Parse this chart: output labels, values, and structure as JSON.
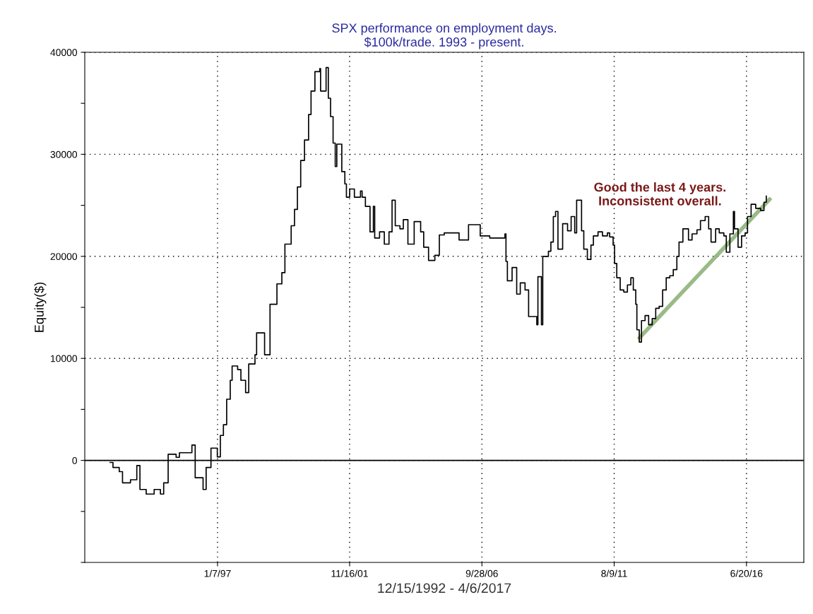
{
  "chart_data": {
    "type": "step",
    "title": "SPX performance on employment days.\n$100k/trade. 1993 - present.",
    "xlabel": "12/15/1992 - 4/6/2017",
    "ylabel": "Equity($)",
    "xlim": [
      "1992-02-20",
      "2018-07-30"
    ],
    "xticks": [
      {
        "value": "1997-01-07",
        "label": "1/7/97"
      },
      {
        "value": "2001-11-16",
        "label": "11/16/01"
      },
      {
        "value": "2006-09-28",
        "label": "9/28/06"
      },
      {
        "value": "2011-08-09",
        "label": "8/9/11"
      },
      {
        "value": "2016-06-20",
        "label": "6/20/16"
      }
    ],
    "ylim": [
      -10000,
      40000
    ],
    "yticks": [
      {
        "value": -10000,
        "label": null
      },
      {
        "value": -5000,
        "label": null
      },
      0,
      {
        "value": 5000,
        "label": null
      },
      10000,
      {
        "value": 15000,
        "label": null
      },
      20000,
      {
        "value": 25000,
        "label": null
      },
      30000,
      {
        "value": 35000,
        "label": null
      },
      40000
    ],
    "grid": true,
    "line_style": "solid",
    "marker": "none",
    "ref_lines": [
      {
        "axis": "y",
        "value": 0,
        "color": "#000000",
        "line_style": "solid"
      }
    ],
    "annotations": [
      "Good the last 4 years.\nInconsistent overall."
    ],
    "series": [
      {
        "color": "#000000",
        "x": [
          "1993-01-26",
          "1993-03-05",
          "1993-05-28",
          "1993-07-11",
          "1993-10-26",
          "1994-01-19",
          "1994-03-02",
          "1994-05-25",
          "1994-09-09",
          "1994-12-02",
          "1995-01-15",
          "1995-03-16",
          "1995-07-01",
          "1995-08-14",
          "1995-12-16",
          "1996-01-29",
          "1996-03-13",
          "1996-06-27",
          "1996-08-07",
          "1996-10-11",
          "1996-12-13",
          "1997-01-04",
          "1997-02-14",
          "1997-03-27",
          "1997-05-10",
          "1997-06-27",
          "1997-07-22",
          "1997-10-04",
          "1997-11-17",
          "1998-01-19",
          "1998-03-02",
          "1998-05-25",
          "1998-06-16",
          "1998-09-09",
          "1998-10-01",
          "1998-12-13",
          "1999-02-03",
          "1999-03-16",
          "1999-05-21",
          "1999-07-01",
          "1999-09-02",
          "1999-09-23",
          "1999-11-07",
          "1999-12-16",
          "2000-01-29",
          "2000-03-20",
          "2000-05-14",
          "2000-06-16",
          "2000-08-07",
          "2000-10-11",
          "2000-10-22",
          "2001-01-04",
          "2001-02-03",
          "2001-03-05",
          "2001-04-08",
          "2001-05-07",
          "2001-05-28",
          "2001-07-19",
          "2001-08-03",
          "2001-09-13",
          "2001-10-04",
          "2001-11-17",
          "2002-01-19",
          "2002-04-11",
          "2002-05-03",
          "2002-06-16",
          "2002-08-17",
          "2002-10-01",
          "2002-10-19",
          "2002-12-23",
          "2003-02-25",
          "2003-04-29",
          "2003-06-09",
          "2003-07-22",
          "2003-09-23",
          "2003-11-07",
          "2004-01-08",
          "2004-04-01",
          "2004-06-27",
          "2004-08-07",
          "2004-10-11",
          "2005-01-04",
          "2005-03-05",
          "2005-05-10",
          "2005-06-20",
          "2005-11-25",
          "2006-04-01",
          "2006-08-07",
          "2006-09-05",
          "2007-01-11",
          "2007-08-03",
          "2007-08-17",
          "2007-09-05",
          "2007-11-07",
          "2008-01-08",
          "2008-02-25",
          "2008-04-29",
          "2008-06-16",
          "2008-09-02",
          "2008-10-04",
          "2008-10-19",
          "2008-12-05",
          "2008-12-23",
          "2009-03-09",
          "2009-04-11",
          "2009-05-14",
          "2009-06-13",
          "2009-07-15",
          "2009-08-17",
          "2009-09-16",
          "2009-11-21",
          "2010-01-08",
          "2010-02-25",
          "2010-03-23",
          "2010-05-10",
          "2010-05-28",
          "2010-06-27",
          "2010-08-14",
          "2010-10-01",
          "2010-11-03",
          "2011-01-04",
          "2011-03-05",
          "2011-05-10",
          "2011-06-09",
          "2011-07-26",
          "2011-08-14",
          "2011-09-13",
          "2011-10-29",
          "2011-12-16",
          "2012-02-03",
          "2012-03-20",
          "2012-04-22",
          "2012-05-25",
          "2012-06-09",
          "2012-07-11",
          "2012-08-10",
          "2012-09-27",
          "2012-11-14",
          "2013-01-01",
          "2013-02-17",
          "2013-04-04",
          "2013-05-21",
          "2013-07-08",
          "2013-08-25",
          "2013-10-11",
          "2013-11-28",
          "2013-12-27",
          "2014-02-17",
          "2014-04-04",
          "2014-05-03",
          "2014-06-20",
          "2014-08-25",
          "2014-10-11",
          "2014-12-13",
          "2015-01-29",
          "2015-03-02",
          "2015-05-03",
          "2015-06-20",
          "2015-08-21",
          "2015-09-23",
          "2015-11-10",
          "2015-12-27",
          "2016-01-11",
          "2016-02-28",
          "2016-04-15",
          "2016-06-02",
          "2016-07-04",
          "2016-08-21",
          "2016-10-22",
          "2016-12-27",
          "2017-02-10",
          "2017-03-13"
        ],
        "values": [
          -200,
          -700,
          -1100,
          -2200,
          -1900,
          -500,
          -2850,
          -3300,
          -2850,
          -3300,
          -2200,
          600,
          300,
          750,
          750,
          1500,
          -1700,
          -2850,
          -700,
          1200,
          1200,
          350,
          2450,
          3500,
          6000,
          7850,
          9250,
          8900,
          7850,
          6650,
          9450,
          10350,
          12500,
          12500,
          10350,
          15300,
          15300,
          17300,
          18400,
          21200,
          21200,
          23000,
          24600,
          26800,
          29400,
          31400,
          33900,
          36200,
          38100,
          38400,
          36200,
          38500,
          35500,
          33700,
          31100,
          28800,
          31000,
          31000,
          28300,
          27100,
          25800,
          26600,
          25800,
          26400,
          25800,
          24900,
          22400,
          24900,
          21800,
          22400,
          21200,
          22400,
          25500,
          23000,
          22700,
          23600,
          21200,
          23400,
          22400,
          20900,
          19600,
          20100,
          22100,
          22300,
          22300,
          21600,
          23100,
          23100,
          22000,
          21800,
          22200,
          19500,
          17600,
          18900,
          16300,
          17400,
          16700,
          14100,
          14100,
          13300,
          18000,
          13300,
          20000,
          20500,
          21400,
          23900,
          24400,
          20700,
          20700,
          23200,
          22500,
          23900,
          22300,
          25500,
          25500,
          22500,
          20700,
          19700,
          21100,
          22000,
          22400,
          22000,
          22300,
          21900,
          21100,
          19300,
          17900,
          16700,
          16500,
          17200,
          17900,
          16700,
          15300,
          12800,
          11600,
          13700,
          14200,
          13300,
          13900,
          14900,
          15100,
          16700,
          17900,
          18100,
          18700,
          20000,
          21400,
          22700,
          22700,
          21600,
          22200,
          22600,
          23500,
          23900,
          22700,
          21400,
          22700,
          22300,
          22000,
          20400,
          22200,
          24400,
          22700,
          20900,
          22000,
          22300,
          23900,
          25100,
          24700,
          24500,
          25300,
          25900
        ]
      },
      {
        "type": "line",
        "color": "#8fb27a",
        "x": [
          "2012-07-11",
          "2017-04-29"
        ],
        "values": [
          12000,
          25600
        ]
      }
    ]
  }
}
